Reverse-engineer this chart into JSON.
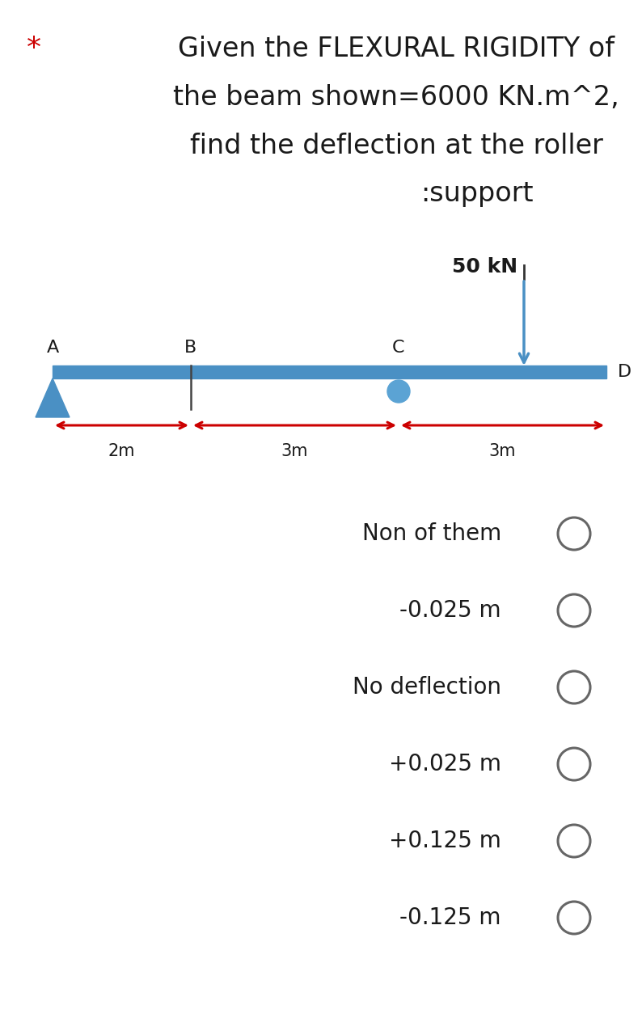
{
  "title_line1": "Given the FLEXURAL RIGIDITY of",
  "title_line2": "the beam shown=6000 KN.m^2,",
  "title_line3": "find the deflection at the roller",
  "title_line4": ":support",
  "star_text": "*",
  "star_color": "#cc0000",
  "bg_color": "#ffffff",
  "text_color": "#1a1a1a",
  "beam_color": "#4a90c4",
  "arrow_color": "#cc0000",
  "load_label": "50 kN",
  "dim_AB_label": "2m",
  "dim_BC_label": "3m",
  "dim_CD_label": "3m",
  "label_A": "A",
  "label_B": "B",
  "label_C": "C",
  "label_D": "D",
  "options": [
    "Non of them",
    "-0.025 m",
    "No deflection",
    "+0.025 m",
    "+0.125 m",
    "-0.125 m"
  ]
}
